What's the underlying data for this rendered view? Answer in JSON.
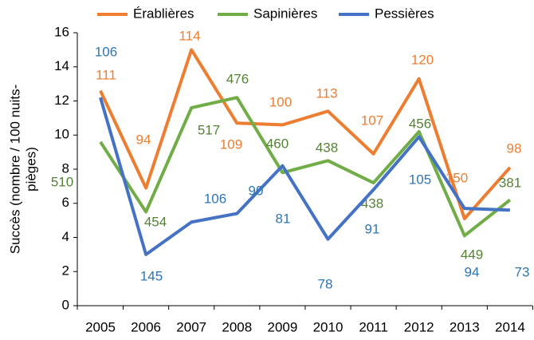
{
  "chart_data": {
    "type": "line",
    "categories": [
      "2005",
      "2006",
      "2007",
      "2008",
      "2009",
      "2010",
      "2011",
      "2012",
      "2013",
      "2014"
    ],
    "ylabel": [
      "Succès (nombre / 100 nuits-",
      "pièges)"
    ],
    "ylim": [
      0,
      16
    ],
    "yticks": [
      0,
      2,
      4,
      6,
      8,
      10,
      12,
      14,
      16
    ],
    "grid": false,
    "legend": "top",
    "series": [
      {
        "name": "Érablières",
        "color": "#ed7d31",
        "label_color": "#ed7d31",
        "values": [
          12.6,
          6.9,
          15.0,
          10.7,
          10.6,
          11.4,
          8.9,
          13.3,
          5.1,
          8.1
        ],
        "labels": [
          "111",
          "94",
          "114",
          "109",
          "100",
          "113",
          "107",
          "120",
          "150",
          "98"
        ]
      },
      {
        "name": "Sapinières",
        "color": "#70ad47",
        "label_color": "#548235",
        "values": [
          9.6,
          5.5,
          11.6,
          12.2,
          7.8,
          8.5,
          7.2,
          10.2,
          4.1,
          6.2
        ],
        "labels": [
          "510",
          "454",
          "517",
          "476",
          "460",
          "438",
          "438",
          "456",
          "449",
          "381"
        ]
      },
      {
        "name": "Pessières",
        "color": "#4472c4",
        "label_color": "#2e75b6",
        "values": [
          12.2,
          3.0,
          4.9,
          5.4,
          8.2,
          3.9,
          6.8,
          9.9,
          5.7,
          5.6
        ],
        "labels": [
          "106",
          "145",
          "106",
          "90",
          "81",
          "78",
          "91",
          "105",
          "94",
          "73"
        ]
      }
    ]
  }
}
